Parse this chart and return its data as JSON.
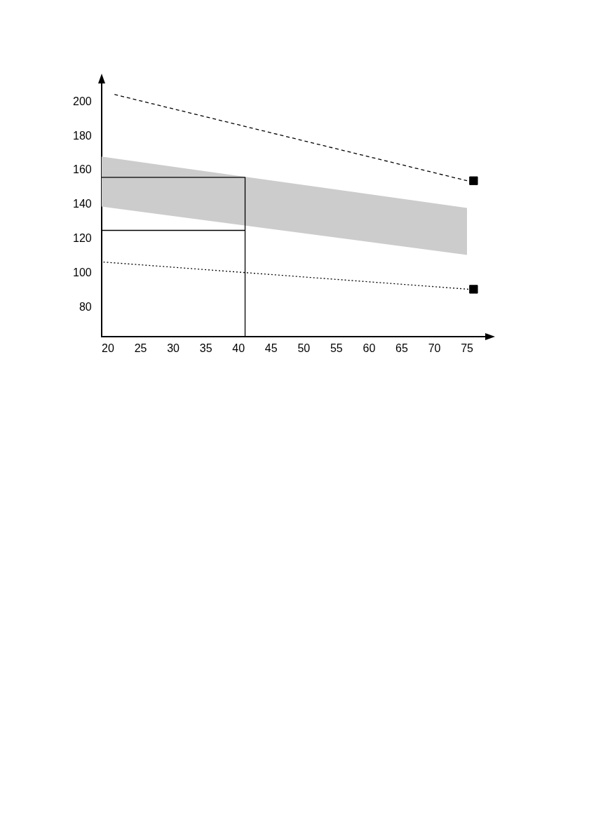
{
  "chart_data": {
    "type": "line",
    "xlim": [
      19,
      78
    ],
    "ylim": [
      63,
      211
    ],
    "xticks": [
      20,
      25,
      30,
      35,
      40,
      45,
      50,
      55,
      60,
      65,
      70,
      75
    ],
    "yticks": [
      80,
      100,
      120,
      140,
      160,
      180,
      200
    ],
    "grid": false,
    "legend": false,
    "series": [
      {
        "type": "line",
        "color": "#000000",
        "line_style": "dashed",
        "x": [
          21,
          75
        ],
        "values": [
          204.4,
          154
        ]
      },
      {
        "type": "line",
        "color": "#000000",
        "line_style": "dotted",
        "x": [
          19.3,
          75.3
        ],
        "values": [
          106.5,
          90.6
        ]
      },
      {
        "color": "#cccccc",
        "x": [
          19,
          75
        ],
        "values": [
          null,
          null
        ],
        "lower": [
          138.9,
          110.7
        ],
        "upper": [
          168.1,
          138.1
        ]
      },
      {
        "type": "line",
        "color": "#000000",
        "line_style": "solid",
        "x": [
          19,
          41,
          41
        ],
        "values": [
          156,
          156,
          63
        ]
      },
      {
        "type": "line",
        "color": "#000000",
        "line_style": "solid",
        "x": [
          19,
          41
        ],
        "values": [
          125,
          125
        ]
      },
      {
        "type": "scatter",
        "color": "#000000",
        "marker": "square",
        "x": [
          76
        ],
        "values": [
          154
        ]
      },
      {
        "type": "scatter",
        "color": "#000000",
        "marker": "square",
        "x": [
          76
        ],
        "values": [
          90.6
        ]
      }
    ]
  }
}
